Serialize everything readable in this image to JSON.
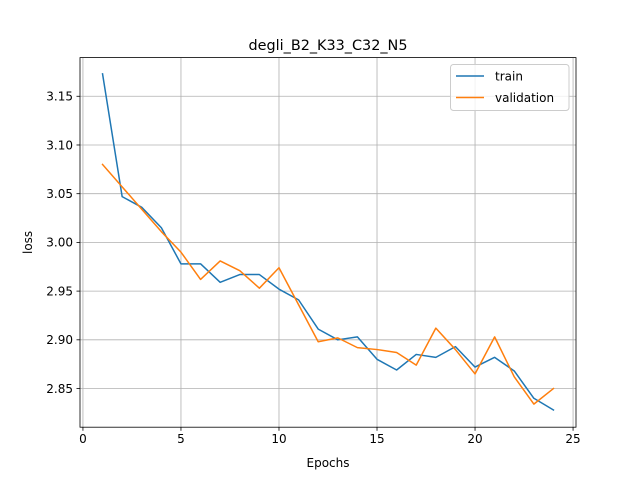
{
  "chart_data": {
    "type": "line",
    "title": "degli_B2_K33_C32_N5",
    "xlabel": "Epochs",
    "ylabel": "loss",
    "xlim": [
      -0.15,
      25.15
    ],
    "ylim": [
      2.8103,
      3.1897
    ],
    "xticks": [
      0,
      5,
      10,
      15,
      20,
      25
    ],
    "xtick_labels": [
      "0",
      "5",
      "10",
      "15",
      "20",
      "25"
    ],
    "yticks": [
      2.85,
      2.9,
      2.95,
      3.0,
      3.05,
      3.1,
      3.15
    ],
    "ytick_labels": [
      "2.85",
      "2.90",
      "2.95",
      "3.00",
      "3.05",
      "3.10",
      "3.15"
    ],
    "grid": true,
    "legend_position": "upper right",
    "x": [
      1,
      2,
      3,
      4,
      5,
      6,
      7,
      8,
      9,
      10,
      11,
      12,
      13,
      14,
      15,
      16,
      17,
      18,
      19,
      20,
      21,
      22,
      23,
      24
    ],
    "series": [
      {
        "name": "train",
        "color": "#1f77b4",
        "values": [
          3.173,
          3.047,
          3.036,
          3.015,
          2.978,
          2.978,
          2.959,
          2.967,
          2.967,
          2.952,
          2.941,
          2.911,
          2.9,
          2.903,
          2.88,
          2.869,
          2.885,
          2.882,
          2.893,
          2.872,
          2.882,
          2.868,
          2.84,
          2.828
        ]
      },
      {
        "name": "validation",
        "color": "#ff7f0e",
        "values": [
          3.08,
          3.057,
          3.034,
          3.011,
          2.99,
          2.962,
          2.981,
          2.971,
          2.953,
          2.974,
          2.936,
          2.898,
          2.902,
          2.892,
          2.89,
          2.887,
          2.874,
          2.912,
          2.89,
          2.865,
          2.903,
          2.862,
          2.834,
          2.85
        ]
      }
    ]
  }
}
